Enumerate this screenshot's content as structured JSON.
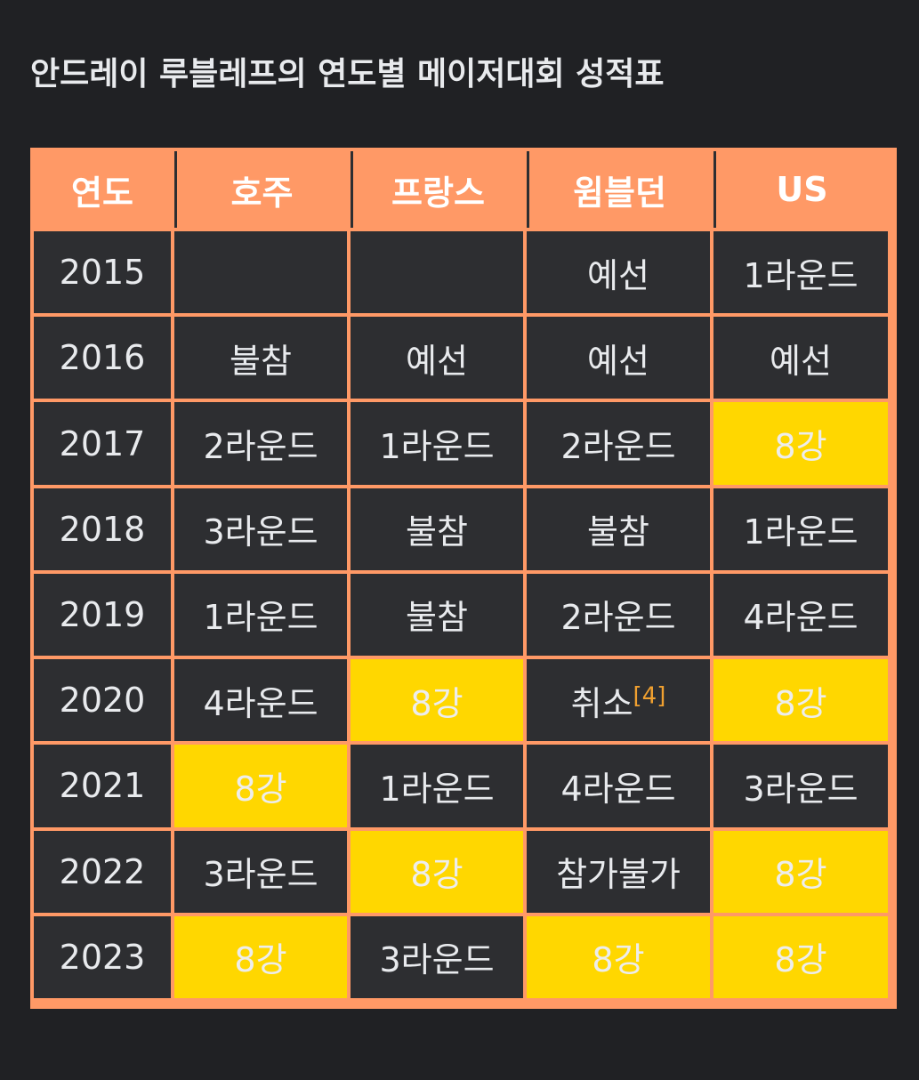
{
  "title": "안드레이 루블레프의 연도별 메이저대회 성적표",
  "colors": {
    "background": "#202124",
    "header": "#ff9966",
    "cell": "#2d2e31",
    "highlight": "#ffd700",
    "reference": "#f0a030"
  },
  "table": {
    "headers": [
      "연도",
      "호주",
      "프랑스",
      "윔블던",
      "US"
    ],
    "rows": [
      {
        "year": "2015",
        "cells": [
          {
            "text": "",
            "highlight": false
          },
          {
            "text": "",
            "highlight": false
          },
          {
            "text": "예선",
            "highlight": false
          },
          {
            "text": "1라운드",
            "highlight": false
          }
        ]
      },
      {
        "year": "2016",
        "cells": [
          {
            "text": "불참",
            "highlight": false
          },
          {
            "text": "예선",
            "highlight": false
          },
          {
            "text": "예선",
            "highlight": false
          },
          {
            "text": "예선",
            "highlight": false
          }
        ]
      },
      {
        "year": "2017",
        "cells": [
          {
            "text": "2라운드",
            "highlight": false
          },
          {
            "text": "1라운드",
            "highlight": false
          },
          {
            "text": "2라운드",
            "highlight": false
          },
          {
            "text": "8강",
            "highlight": true
          }
        ]
      },
      {
        "year": "2018",
        "cells": [
          {
            "text": "3라운드",
            "highlight": false
          },
          {
            "text": "불참",
            "highlight": false
          },
          {
            "text": "불참",
            "highlight": false
          },
          {
            "text": "1라운드",
            "highlight": false
          }
        ]
      },
      {
        "year": "2019",
        "cells": [
          {
            "text": "1라운드",
            "highlight": false
          },
          {
            "text": "불참",
            "highlight": false
          },
          {
            "text": "2라운드",
            "highlight": false
          },
          {
            "text": "4라운드",
            "highlight": false
          }
        ]
      },
      {
        "year": "2020",
        "cells": [
          {
            "text": "4라운드",
            "highlight": false
          },
          {
            "text": "8강",
            "highlight": true
          },
          {
            "text": "취소",
            "highlight": false,
            "ref": "[4]"
          },
          {
            "text": "8강",
            "highlight": true
          }
        ]
      },
      {
        "year": "2021",
        "cells": [
          {
            "text": "8강",
            "highlight": true
          },
          {
            "text": "1라운드",
            "highlight": false
          },
          {
            "text": "4라운드",
            "highlight": false
          },
          {
            "text": "3라운드",
            "highlight": false
          }
        ]
      },
      {
        "year": "2022",
        "cells": [
          {
            "text": "3라운드",
            "highlight": false
          },
          {
            "text": "8강",
            "highlight": true
          },
          {
            "text": "참가불가",
            "highlight": false
          },
          {
            "text": "8강",
            "highlight": true
          }
        ]
      },
      {
        "year": "2023",
        "cells": [
          {
            "text": "8강",
            "highlight": true
          },
          {
            "text": "3라운드",
            "highlight": false
          },
          {
            "text": "8강",
            "highlight": true
          },
          {
            "text": "8강",
            "highlight": true
          }
        ]
      }
    ]
  }
}
